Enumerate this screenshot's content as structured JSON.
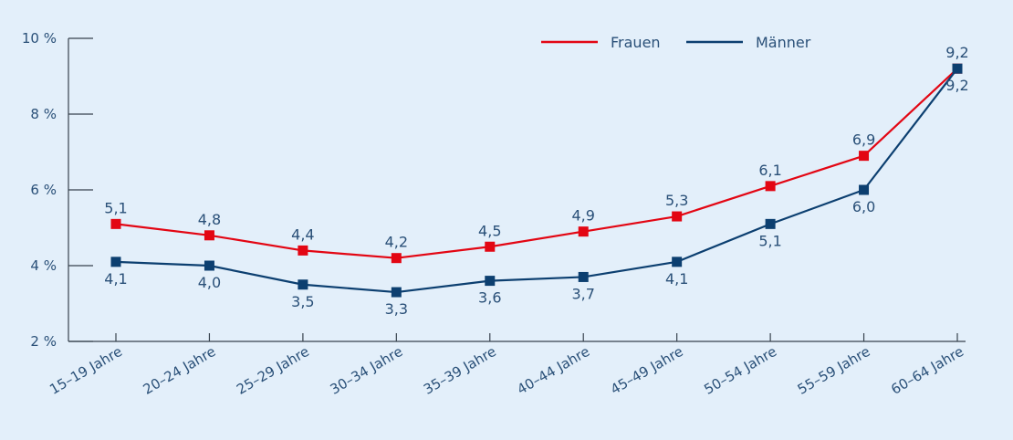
{
  "chart_data": {
    "type": "line",
    "categories": [
      "15–19 Jahre",
      "20–24 Jahre",
      "25–29 Jahre",
      "30–34 Jahre",
      "35–39 Jahre",
      "40–44 Jahre",
      "45–49 Jahre",
      "50–54 Jahre",
      "55–59 Jahre",
      "60–64 Jahre"
    ],
    "series": [
      {
        "name": "Frauen",
        "color": "#e30613",
        "values": [
          5.1,
          4.8,
          4.4,
          4.2,
          4.5,
          4.9,
          5.3,
          6.1,
          6.9,
          9.2
        ],
        "labels": [
          "5,1",
          "4,8",
          "4,4",
          "4,2",
          "4,5",
          "4,9",
          "5,3",
          "6,1",
          "6,9",
          "9,2"
        ]
      },
      {
        "name": "Männer",
        "color": "#0c3f70",
        "values": [
          4.1,
          4.0,
          3.5,
          3.3,
          3.6,
          3.7,
          4.1,
          5.1,
          6.0,
          9.2
        ],
        "labels": [
          "4,1",
          "4,0",
          "3,5",
          "3,3",
          "3,6",
          "3,7",
          "4,1",
          "5,1",
          "6,0",
          "9,2"
        ]
      }
    ],
    "title": "",
    "xlabel": "",
    "ylabel": "",
    "ylim": [
      2,
      10
    ],
    "yticks": [
      2,
      4,
      6,
      8,
      10
    ],
    "ytick_labels": [
      "2 %",
      "4 %",
      "6 %",
      "8 %",
      "10 %"
    ],
    "grid": false,
    "legend_position": "top-right"
  }
}
